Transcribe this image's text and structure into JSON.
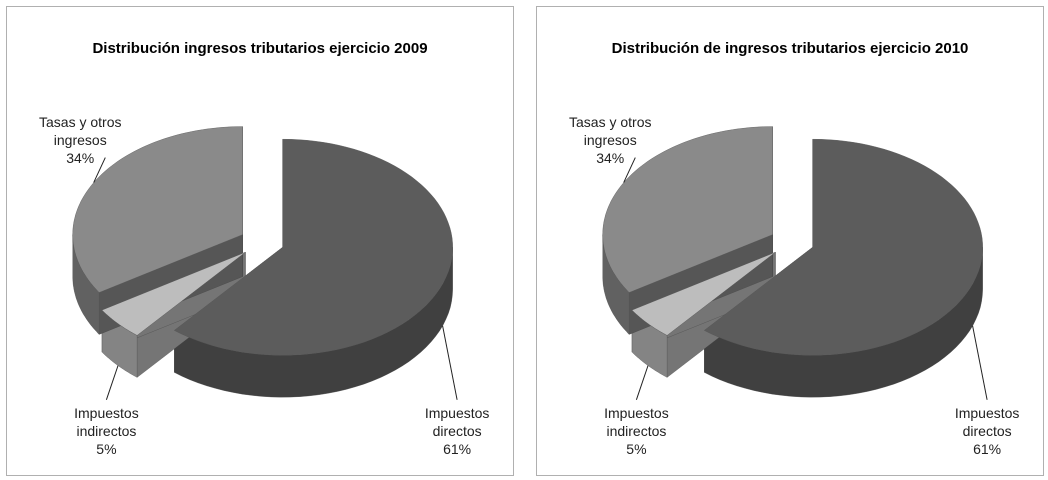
{
  "chart_data": [
    {
      "type": "pie",
      "title": "Distribución ingresos tributarios ejercicio 2009",
      "categories": [
        "Impuestos directos",
        "Impuestos indirectos",
        "Tasas y otros ingresos"
      ],
      "values": [
        61,
        5,
        34
      ],
      "value_labels": [
        "61%",
        "5%",
        "34%"
      ],
      "colors": [
        "#5c5c5c",
        "#bdbdbd",
        "#8a8a8a"
      ]
    },
    {
      "type": "pie",
      "title": "Distribución de ingresos tributarios ejercicio 2010",
      "categories": [
        "Impuestos directos",
        "Impuestos indirectos",
        "Tasas y otros ingresos"
      ],
      "values": [
        61,
        5,
        34
      ],
      "value_labels": [
        "61%",
        "5%",
        "34%"
      ],
      "colors": [
        "#5c5c5c",
        "#bdbdbd",
        "#8a8a8a"
      ]
    }
  ]
}
